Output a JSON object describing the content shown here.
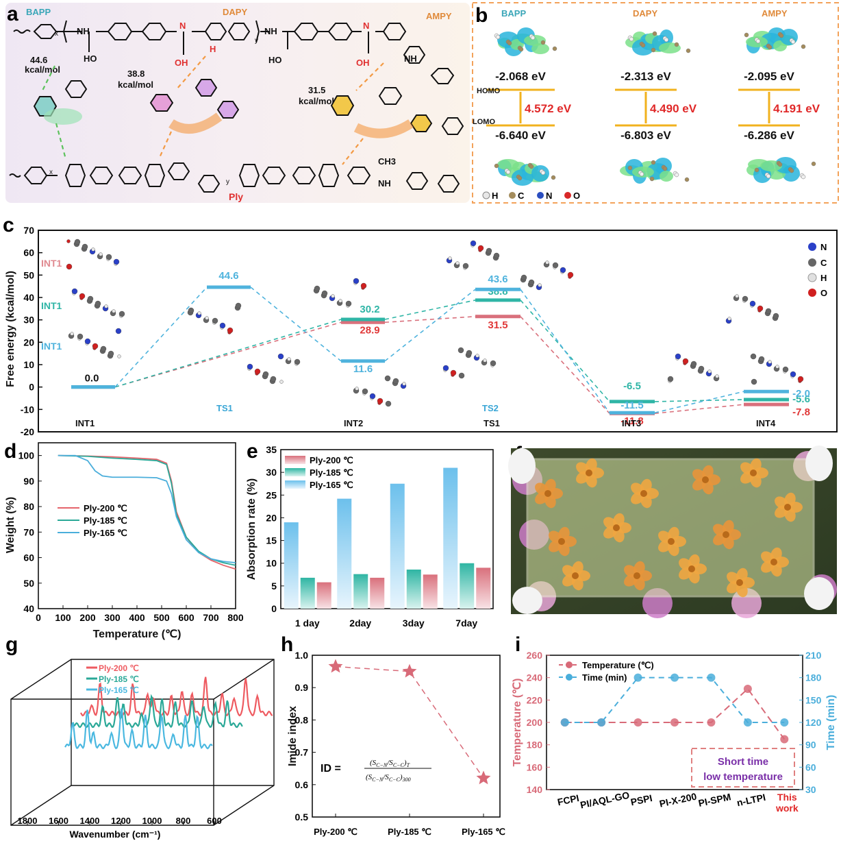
{
  "panels": {
    "a": {
      "letter": "a",
      "labels": {
        "bapp": "BAPP",
        "dapy": "DAPY",
        "ampy": "AMPY",
        "ply": "Ply",
        "x": "x",
        "y": "y"
      },
      "energies": [
        {
          "value": "44.6",
          "unit": "kcal/mol"
        },
        {
          "value": "38.8",
          "unit": "kcal/mol"
        },
        {
          "value": "31.5",
          "unit": "kcal/mol"
        }
      ],
      "atoms": {
        "nh": "NH",
        "h": "H",
        "n": "N",
        "o": "O",
        "ho": "HO",
        "oh": "OH",
        "ch3": "CH3"
      }
    },
    "b": {
      "letter": "b",
      "columns": [
        {
          "name": "BAPP",
          "homo": "-2.068 eV",
          "gap": "4.572 eV",
          "lumo": "-6.640 eV"
        },
        {
          "name": "DAPY",
          "homo": "-2.313 eV",
          "gap": "4.490 eV",
          "lumo": "-6.803 eV"
        },
        {
          "name": "AMPY",
          "homo": "-2.095 eV",
          "gap": "4.191 eV",
          "lumo": "-6.286 eV"
        }
      ],
      "homo_label": "HOMO",
      "lumo_label": "LOMO",
      "atoms": [
        "H",
        "C",
        "N",
        "O"
      ]
    },
    "c": {
      "letter": "c",
      "legend": [
        "N",
        "C",
        "H",
        "O"
      ],
      "int1_labels": [
        "INT1",
        "INT1",
        "INT1"
      ],
      "stage_labels": [
        {
          "text": "INT1",
          "color": "#111"
        },
        {
          "text": "TS1",
          "color": "#3aa6d6"
        },
        {
          "text": "INT2",
          "color": "#111"
        },
        {
          "text": "TS2",
          "color": "#3aa6d6"
        },
        {
          "text": "TS1",
          "color": "#111"
        },
        {
          "text": "INT3",
          "color": "#111"
        },
        {
          "text": "INT4",
          "color": "#111"
        }
      ]
    },
    "d": {
      "letter": "d"
    },
    "e": {
      "letter": "e"
    },
    "f": {
      "letter": "f"
    },
    "g": {
      "letter": "g"
    },
    "h": {
      "letter": "h",
      "formula_prefix": "ID =",
      "num": "(S",
      "den": "(S"
    },
    "i": {
      "letter": "i",
      "box_line1": "Short time",
      "box_line2": "low temperature"
    }
  },
  "chart_data": [
    {
      "id": "c",
      "type": "line",
      "ylabel": "Free energy (kcal/mol)",
      "ylim": [
        -20,
        70
      ],
      "yticks": [
        -20,
        -10,
        0,
        10,
        20,
        30,
        40,
        50,
        60,
        70
      ],
      "series": [
        {
          "color": "#d9707c",
          "levels": [
            {
              "x": "INT1",
              "y": 0.0,
              "label": "0.0"
            },
            {
              "x": "INT2",
              "y": 28.9,
              "label": "28.9"
            },
            {
              "x": "TS2",
              "y": 31.5,
              "label": "31.5"
            },
            {
              "x": "INT3",
              "y": -11.8,
              "label": "-11.8"
            },
            {
              "x": "INT4",
              "y": -7.8,
              "label": "-7.8"
            }
          ]
        },
        {
          "color": "#2fb5a6",
          "levels": [
            {
              "x": "INT1",
              "y": 0.0
            },
            {
              "x": "INT2",
              "y": 30.2,
              "label": "30.2"
            },
            {
              "x": "TS2",
              "y": 38.8,
              "label": "38.8"
            },
            {
              "x": "INT3",
              "y": -6.5,
              "label": "-6.5"
            },
            {
              "x": "INT4",
              "y": -5.6,
              "label": "-5.6"
            }
          ]
        },
        {
          "color": "#4fb3dd",
          "levels": [
            {
              "x": "INT1",
              "y": 0.0
            },
            {
              "x": "TS1",
              "y": 44.6,
              "label": "44.6"
            },
            {
              "x": "INT2",
              "y": 11.6,
              "label": "11.6"
            },
            {
              "x": "TS2",
              "y": 43.6,
              "label": "43.6"
            },
            {
              "x": "INT3",
              "y": -11.5,
              "label": "-11.5"
            },
            {
              "x": "INT4",
              "y": -2.0,
              "label": "-2.0"
            }
          ]
        }
      ]
    },
    {
      "id": "d",
      "type": "line",
      "xlabel": "Temperature (℃)",
      "ylabel": "Weight (%)",
      "xlim": [
        0,
        800
      ],
      "ylim": [
        40,
        105
      ],
      "xticks": [
        0,
        100,
        200,
        300,
        400,
        500,
        600,
        700,
        800
      ],
      "yticks": [
        40,
        50,
        60,
        70,
        80,
        90,
        100
      ],
      "series": [
        {
          "name": "Ply-200 ℃",
          "color": "#e5646b",
          "x": [
            80,
            200,
            300,
            400,
            480,
            520,
            540,
            560,
            600,
            650,
            700,
            750,
            800
          ],
          "y": [
            100,
            99.8,
            99.5,
            99,
            98.5,
            97,
            90,
            78,
            68,
            62,
            59,
            57,
            55.5
          ]
        },
        {
          "name": "Ply-185 ℃",
          "color": "#2aa897",
          "x": [
            80,
            200,
            300,
            400,
            480,
            520,
            540,
            560,
            600,
            650,
            700,
            750,
            800
          ],
          "y": [
            100,
            99.7,
            99,
            98.5,
            98,
            96.5,
            89,
            77,
            68,
            62.5,
            59.5,
            58,
            57
          ]
        },
        {
          "name": "Ply-165 ℃",
          "color": "#4aaedb",
          "x": [
            80,
            150,
            200,
            230,
            260,
            300,
            400,
            480,
            520,
            540,
            560,
            600,
            650,
            700,
            750,
            800
          ],
          "y": [
            100,
            100,
            98,
            94,
            92,
            91.5,
            91.5,
            91.3,
            90,
            85,
            76,
            67,
            62,
            59.5,
            58.5,
            58
          ]
        }
      ]
    },
    {
      "id": "e",
      "type": "bar",
      "ylabel": "Absorption rate (%)",
      "ylim": [
        0,
        35
      ],
      "yticks": [
        0,
        5,
        10,
        15,
        20,
        25,
        30,
        35
      ],
      "categories": [
        "1 day",
        "2day",
        "3day",
        "7day"
      ],
      "series": [
        {
          "name": "Ply-200 ℃",
          "color": "#e08090",
          "values": [
            5.8,
            6.8,
            7.5,
            9.0
          ]
        },
        {
          "name": "Ply-185 ℃",
          "color": "#3dbcaa",
          "values": [
            6.8,
            7.6,
            8.6,
            10.0
          ]
        },
        {
          "name": "Ply-165 ℃",
          "color": "#7cc4ea",
          "values": [
            19.0,
            24.2,
            27.5,
            31.0
          ]
        }
      ]
    },
    {
      "id": "g",
      "type": "line",
      "xlabel": "Wavenumber (cm⁻¹)",
      "xticks": [
        1800,
        1600,
        1400,
        1200,
        1000,
        800,
        600
      ],
      "series": [
        {
          "name": "Ply-200 ℃",
          "color": "#ee5a60"
        },
        {
          "name": "Ply-185 ℃",
          "color": "#2aa897"
        },
        {
          "name": "Ply-165 ℃",
          "color": "#4ab8e0"
        }
      ]
    },
    {
      "id": "h",
      "type": "scatter",
      "ylabel": "Imide index",
      "ylim": [
        0.5,
        1.0
      ],
      "yticks": [
        0.5,
        0.6,
        0.7,
        0.8,
        0.9,
        1.0
      ],
      "categories": [
        "Ply-200 ℃",
        "Ply-185 ℃",
        "Ply-165 ℃"
      ],
      "values": [
        0.965,
        0.95,
        0.62
      ],
      "color": "#d86a78"
    },
    {
      "id": "i",
      "type": "line",
      "ylabel": "Temperature (℃)",
      "ylabel2": "Time (min)",
      "ylim": [
        140,
        260
      ],
      "ylim2": [
        30,
        210
      ],
      "yticks": [
        140,
        160,
        180,
        200,
        220,
        240,
        260
      ],
      "yticks2": [
        30,
        60,
        90,
        120,
        150,
        180,
        210
      ],
      "categories": [
        "FCPI",
        "PI/AQL-GO",
        "PSPI",
        "PI-X-200",
        "PI-SPM",
        "n-LTPI",
        "This work"
      ],
      "series": [
        {
          "name": "Temperature (℃)",
          "color": "#d86a78",
          "values": [
            200,
            200,
            200,
            200,
            200,
            230,
            185
          ]
        },
        {
          "name": "Time (min)",
          "color": "#4aaedb",
          "axis": "right",
          "values": [
            120,
            120,
            180,
            180,
            180,
            120,
            120
          ]
        }
      ]
    }
  ]
}
